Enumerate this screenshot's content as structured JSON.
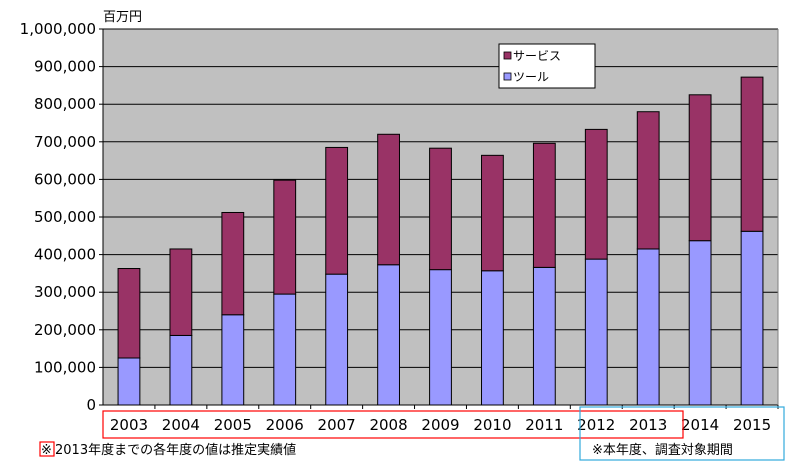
{
  "chart_data": {
    "type": "bar",
    "stacked": true,
    "unit_label": "百万円",
    "categories": [
      "2003",
      "2004",
      "2005",
      "2006",
      "2007",
      "2008",
      "2009",
      "2010",
      "2011",
      "2012",
      "2013",
      "2014",
      "2015"
    ],
    "series": [
      {
        "name": "ツール",
        "color": "#9999ff",
        "values": [
          125000,
          185000,
          240000,
          295000,
          348000,
          373000,
          360000,
          357000,
          366000,
          388000,
          415000,
          437000,
          462000
        ]
      },
      {
        "name": "サービス",
        "color": "#993366",
        "values": [
          238000,
          230000,
          272000,
          303000,
          337000,
          347000,
          323000,
          307000,
          330000,
          345000,
          365000,
          388000,
          410000
        ]
      }
    ],
    "ylim": [
      0,
      1000000
    ],
    "yticks": [
      0,
      100000,
      200000,
      300000,
      400000,
      500000,
      600000,
      700000,
      800000,
      900000,
      1000000
    ],
    "ytick_labels": [
      "0",
      "100,000",
      "200,000",
      "300,000",
      "400,000",
      "500,000",
      "600,000",
      "700,000",
      "800,000",
      "900,000",
      "1,000,000"
    ],
    "grid": true,
    "legend_position": "top-right",
    "legend_order": [
      "サービス",
      "ツール"
    ],
    "plot_background": "#c0c0c0",
    "notes": {
      "left_mark": "※",
      "left_text": "2013年度までの各年度の値は推定実績値",
      "right_text": "※本年度、調査対象期間"
    },
    "highlight_colors": {
      "estimated": "#ff0000",
      "survey_period": "#33aadd"
    }
  }
}
